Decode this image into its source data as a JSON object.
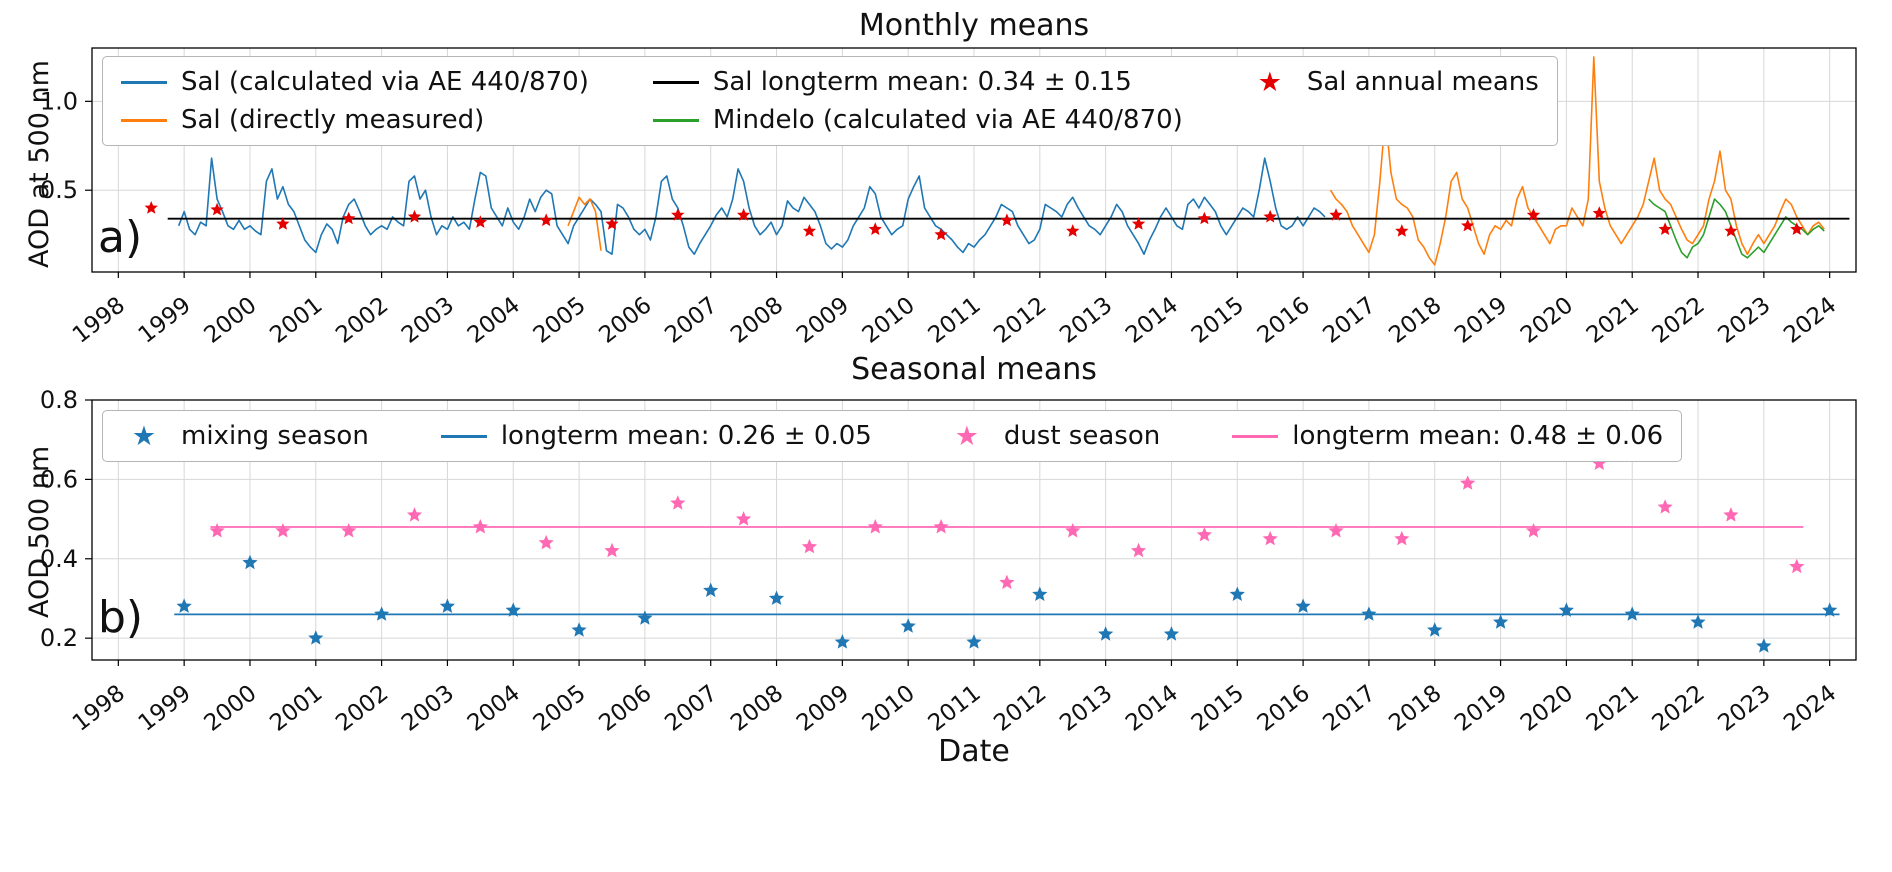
{
  "figure": {
    "background": "#ffffff"
  },
  "panel_labels": {
    "a": "a)",
    "b": "b)"
  },
  "colors": {
    "sal_calculated": "#1f77b4",
    "sal_measured": "#ff7f0e",
    "mindelo": "#2ca02c",
    "longterm_black": "#000000",
    "annual_star_red": "#e50000",
    "dust_pink": "#ff69b4",
    "grid": "#d7d7d7"
  },
  "legends": {
    "a": [
      {
        "marker": "line",
        "color": "#1f77b4",
        "label": "Sal (calculated via AE 440/870)"
      },
      {
        "marker": "line",
        "color": "#ff7f0e",
        "label": "Sal (directly measured)"
      },
      {
        "marker": "line",
        "color": "#000000",
        "label": "Sal longterm mean: 0.34 ± 0.15"
      },
      {
        "marker": "line",
        "color": "#2ca02c",
        "label": "Mindelo (calculated via AE 440/870)"
      },
      {
        "marker": "star",
        "color": "#e50000",
        "label": "Sal annual means"
      }
    ],
    "b": [
      {
        "marker": "star",
        "color": "#1f77b4",
        "label": "mixing season"
      },
      {
        "marker": "line",
        "color": "#1f77b4",
        "label": "longterm mean: 0.26 ± 0.05"
      },
      {
        "marker": "star",
        "color": "#ff69b4",
        "label": "dust season"
      },
      {
        "marker": "line",
        "color": "#ff69b4",
        "label": "longterm mean: 0.48 ± 0.06"
      }
    ]
  },
  "chart_data": [
    {
      "type": "line",
      "name": "monthly-means",
      "title": "Monthly means",
      "ylabel": "AOD at 500 nm",
      "xlabel": "",
      "xlim": [
        1997.6,
        2024.4
      ],
      "ylim": [
        0.04,
        1.3
      ],
      "xticks": [
        1998,
        1999,
        2000,
        2001,
        2002,
        2003,
        2004,
        2005,
        2006,
        2007,
        2008,
        2009,
        2010,
        2011,
        2012,
        2013,
        2014,
        2015,
        2016,
        2017,
        2018,
        2019,
        2020,
        2021,
        2022,
        2023,
        2024
      ],
      "yticks": [
        0.5,
        1.0
      ],
      "grid": true,
      "legend_position": "upper left",
      "series": [
        {
          "name": "Sal (calculated via AE 440/870)",
          "type": "line",
          "color": "#1f77b4",
          "x_start": 1998.9167,
          "x_step": 0.0833333,
          "values": [
            0.3,
            0.38,
            0.28,
            0.25,
            0.32,
            0.3,
            0.68,
            0.45,
            0.38,
            0.3,
            0.28,
            0.33,
            0.28,
            0.3,
            0.27,
            0.25,
            0.55,
            0.62,
            0.45,
            0.52,
            0.42,
            0.38,
            0.3,
            0.22,
            0.18,
            0.15,
            0.25,
            0.31,
            0.28,
            0.2,
            0.35,
            0.42,
            0.45,
            0.38,
            0.3,
            0.25,
            0.28,
            0.3,
            0.28,
            0.35,
            0.32,
            0.3,
            0.55,
            0.58,
            0.45,
            0.5,
            0.35,
            0.25,
            0.3,
            0.28,
            0.35,
            0.3,
            0.32,
            0.28,
            0.45,
            0.6,
            0.58,
            0.4,
            0.35,
            0.3,
            0.4,
            0.32,
            0.28,
            0.35,
            0.45,
            0.38,
            0.46,
            0.5,
            0.48,
            0.3,
            0.25,
            0.2,
            0.3,
            0.35,
            0.4,
            0.45,
            0.42,
            0.38,
            0.16,
            0.14,
            0.42,
            0.4,
            0.35,
            0.28,
            0.25,
            0.28,
            0.22,
            0.35,
            0.55,
            0.58,
            0.45,
            0.4,
            0.3,
            0.18,
            0.14,
            0.2,
            0.25,
            0.3,
            0.36,
            0.4,
            0.35,
            0.45,
            0.62,
            0.55,
            0.4,
            0.3,
            0.25,
            0.28,
            0.32,
            0.25,
            0.3,
            0.44,
            0.4,
            0.38,
            0.46,
            0.42,
            0.38,
            0.3,
            0.2,
            0.17,
            0.2,
            0.18,
            0.22,
            0.3,
            0.35,
            0.4,
            0.52,
            0.48,
            0.35,
            0.3,
            0.25,
            0.28,
            0.3,
            0.45,
            0.52,
            0.58,
            0.4,
            0.35,
            0.3,
            0.28,
            0.25,
            0.22,
            0.18,
            0.15,
            0.2,
            0.18,
            0.22,
            0.25,
            0.3,
            0.35,
            0.42,
            0.4,
            0.38,
            0.3,
            0.25,
            0.2,
            0.22,
            0.28,
            0.42,
            0.4,
            0.38,
            0.35,
            0.42,
            0.46,
            0.4,
            0.35,
            0.3,
            0.28,
            0.25,
            0.3,
            0.35,
            0.42,
            0.38,
            0.3,
            0.25,
            0.2,
            0.14,
            0.22,
            0.28,
            0.35,
            0.4,
            0.35,
            0.3,
            0.28,
            0.42,
            0.45,
            0.4,
            0.46,
            0.42,
            0.38,
            0.3,
            0.25,
            0.3,
            0.35,
            0.4,
            0.38,
            0.35,
            0.5,
            0.68,
            0.55,
            0.4,
            0.3,
            0.28,
            0.3,
            0.35,
            0.3,
            0.35,
            0.4,
            0.38,
            0.35
          ]
        },
        {
          "name": "Sal (directly measured) 2005 segment",
          "type": "line",
          "color": "#ff7f0e",
          "x_start": 2004.8333,
          "x_step": 0.0833333,
          "values": [
            0.3,
            0.38,
            0.46,
            0.42,
            0.45,
            0.38,
            0.16
          ]
        },
        {
          "name": "Sal (directly measured)",
          "type": "line",
          "color": "#ff7f0e",
          "x_start": 2016.4167,
          "x_step": 0.0833333,
          "values": [
            0.5,
            0.45,
            0.42,
            0.38,
            0.3,
            0.25,
            0.2,
            0.15,
            0.25,
            0.55,
            0.92,
            0.6,
            0.45,
            0.42,
            0.4,
            0.35,
            0.22,
            0.18,
            0.12,
            0.08,
            0.2,
            0.35,
            0.55,
            0.6,
            0.45,
            0.4,
            0.3,
            0.2,
            0.14,
            0.25,
            0.3,
            0.28,
            0.33,
            0.3,
            0.45,
            0.52,
            0.4,
            0.35,
            0.3,
            0.25,
            0.2,
            0.28,
            0.3,
            0.3,
            0.4,
            0.35,
            0.3,
            0.45,
            1.25,
            0.55,
            0.4,
            0.3,
            0.25,
            0.2,
            0.25,
            0.3,
            0.35,
            0.42,
            0.55,
            0.68,
            0.5,
            0.45,
            0.42,
            0.35,
            0.28,
            0.22,
            0.2,
            0.25,
            0.3,
            0.45,
            0.55,
            0.72,
            0.5,
            0.45,
            0.3,
            0.2,
            0.14,
            0.2,
            0.25,
            0.2,
            0.25,
            0.3,
            0.38,
            0.45,
            0.42,
            0.35,
            0.3,
            0.25,
            0.3,
            0.32,
            0.28
          ]
        },
        {
          "name": "Mindelo (calculated via AE 440/870)",
          "type": "line",
          "color": "#2ca02c",
          "x_start": 2021.25,
          "x_step": 0.0833333,
          "values": [
            0.45,
            0.42,
            0.4,
            0.38,
            0.3,
            0.22,
            0.15,
            0.12,
            0.18,
            0.2,
            0.25,
            0.35,
            0.45,
            0.42,
            0.38,
            0.3,
            0.22,
            0.14,
            0.12,
            0.15,
            0.18,
            0.15,
            0.2,
            0.25,
            0.3,
            0.35,
            0.32,
            0.3,
            0.28,
            0.25,
            0.28,
            0.3,
            0.27
          ]
        },
        {
          "name": "Sal longterm mean: 0.34 ± 0.15",
          "type": "hline",
          "color": "#000000",
          "y": 0.34,
          "x_range": [
            1998.75,
            2024.3
          ]
        },
        {
          "name": "Sal annual means",
          "type": "stars",
          "color": "#e50000",
          "size": 7,
          "x": [
            1998.5,
            1999.5,
            2000.5,
            2001.5,
            2002.5,
            2003.5,
            2004.5,
            2005.5,
            2006.5,
            2007.5,
            2008.5,
            2009.5,
            2010.5,
            2011.5,
            2012.5,
            2013.5,
            2014.5,
            2015.5,
            2016.5,
            2017.5,
            2018.5,
            2019.5,
            2020.5,
            2021.5,
            2022.5,
            2023.5
          ],
          "y": [
            0.4,
            0.39,
            0.31,
            0.34,
            0.35,
            0.32,
            0.33,
            0.31,
            0.36,
            0.36,
            0.27,
            0.28,
            0.25,
            0.33,
            0.27,
            0.31,
            0.34,
            0.35,
            0.36,
            0.27,
            0.3,
            0.36,
            0.37,
            0.28,
            0.27,
            0.28
          ]
        }
      ]
    },
    {
      "type": "scatter",
      "name": "seasonal-means",
      "title": "Seasonal means",
      "ylabel": "AOD 500 nm",
      "xlabel": "Date",
      "xlim": [
        1997.6,
        2024.4
      ],
      "ylim": [
        0.145,
        0.8
      ],
      "xticks": [
        1998,
        1999,
        2000,
        2001,
        2002,
        2003,
        2004,
        2005,
        2006,
        2007,
        2008,
        2009,
        2010,
        2011,
        2012,
        2013,
        2014,
        2015,
        2016,
        2017,
        2018,
        2019,
        2020,
        2021,
        2022,
        2023,
        2024
      ],
      "yticks": [
        0.2,
        0.4,
        0.6,
        0.8
      ],
      "grid": true,
      "legend_position": "upper left",
      "series": [
        {
          "name": "longterm mean: 0.26 ± 0.05",
          "type": "hline",
          "color": "#1f77b4",
          "y": 0.26,
          "x_range": [
            1998.85,
            2024.15
          ]
        },
        {
          "name": "longterm mean: 0.48 ± 0.06",
          "type": "hline",
          "color": "#ff69b4",
          "y": 0.48,
          "x_range": [
            1999.4,
            2023.6
          ]
        },
        {
          "name": "mixing season",
          "type": "stars",
          "color": "#1f77b4",
          "size": 8,
          "x": [
            1999,
            2000,
            2001,
            2002,
            2003,
            2004,
            2005,
            2006,
            2007,
            2008,
            2009,
            2010,
            2011,
            2012,
            2013,
            2014,
            2015,
            2016,
            2017,
            2018,
            2019,
            2020,
            2021,
            2022,
            2023,
            2024
          ],
          "y": [
            0.28,
            0.39,
            0.2,
            0.26,
            0.28,
            0.27,
            0.22,
            0.25,
            0.32,
            0.3,
            0.19,
            0.23,
            0.19,
            0.31,
            0.21,
            0.21,
            0.31,
            0.28,
            0.26,
            0.22,
            0.24,
            0.27,
            0.26,
            0.24,
            0.18,
            0.27
          ]
        },
        {
          "name": "dust season",
          "type": "stars",
          "color": "#ff69b4",
          "size": 8,
          "x": [
            1999.5,
            2000.5,
            2001.5,
            2002.5,
            2003.5,
            2004.5,
            2005.5,
            2006.5,
            2007.5,
            2008.5,
            2009.5,
            2010.5,
            2011.5,
            2012.5,
            2013.5,
            2014.5,
            2015.5,
            2016.5,
            2017.5,
            2018.5,
            2019.5,
            2020.5,
            2021.5,
            2022.5,
            2023.5
          ],
          "y": [
            0.47,
            0.47,
            0.47,
            0.51,
            0.48,
            0.44,
            0.42,
            0.54,
            0.5,
            0.43,
            0.48,
            0.48,
            0.34,
            0.47,
            0.42,
            0.46,
            0.45,
            0.47,
            0.45,
            0.59,
            0.47,
            0.64,
            0.53,
            0.51,
            0.38
          ]
        }
      ]
    }
  ]
}
